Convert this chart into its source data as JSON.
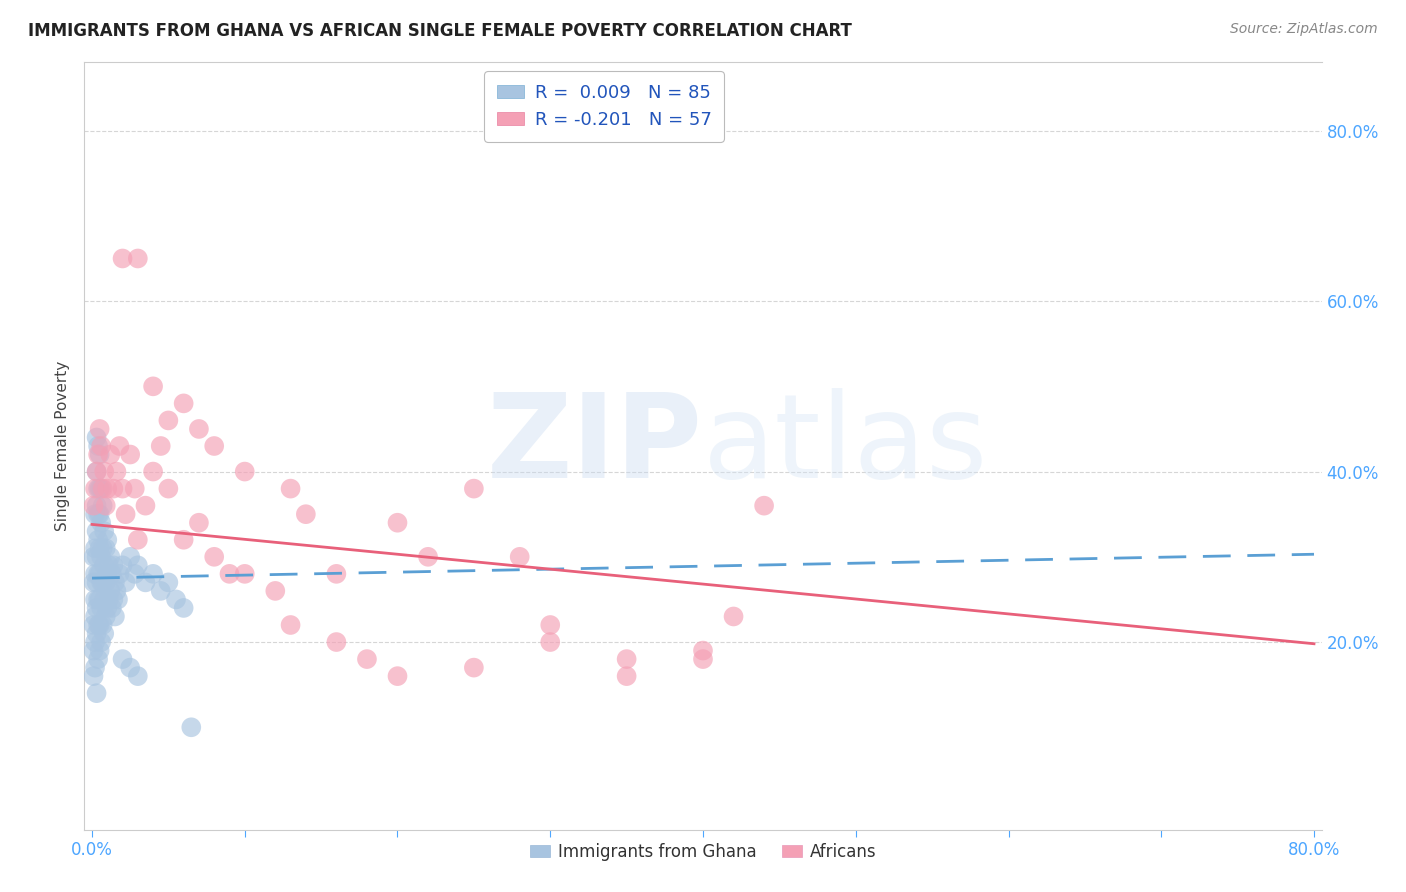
{
  "title": "IMMIGRANTS FROM GHANA VS AFRICAN SINGLE FEMALE POVERTY CORRELATION CHART",
  "source": "Source: ZipAtlas.com",
  "ylabel": "Single Female Poverty",
  "xlim": [
    -0.005,
    0.805
  ],
  "ylim": [
    -0.02,
    0.88
  ],
  "ghana_color": "#a8c4e0",
  "africans_color": "#f4a0b5",
  "ghana_trendline_color": "#5a9fd4",
  "africans_trendline_color": "#e8607a",
  "ghana_R": 0.009,
  "ghana_N": 85,
  "africans_R": -0.201,
  "africans_N": 57,
  "ghana_x": [
    0.001,
    0.001,
    0.001,
    0.001,
    0.001,
    0.002,
    0.002,
    0.002,
    0.002,
    0.002,
    0.002,
    0.002,
    0.003,
    0.003,
    0.003,
    0.003,
    0.003,
    0.003,
    0.003,
    0.003,
    0.003,
    0.004,
    0.004,
    0.004,
    0.004,
    0.004,
    0.004,
    0.004,
    0.004,
    0.005,
    0.005,
    0.005,
    0.005,
    0.005,
    0.005,
    0.005,
    0.005,
    0.006,
    0.006,
    0.006,
    0.006,
    0.006,
    0.006,
    0.007,
    0.007,
    0.007,
    0.007,
    0.008,
    0.008,
    0.008,
    0.008,
    0.009,
    0.009,
    0.009,
    0.01,
    0.01,
    0.01,
    0.011,
    0.011,
    0.012,
    0.012,
    0.013,
    0.013,
    0.014,
    0.014,
    0.015,
    0.015,
    0.016,
    0.017,
    0.018,
    0.02,
    0.022,
    0.025,
    0.028,
    0.03,
    0.035,
    0.04,
    0.045,
    0.05,
    0.055,
    0.06,
    0.065,
    0.02,
    0.025,
    0.03
  ],
  "ghana_y": [
    0.27,
    0.3,
    0.22,
    0.19,
    0.16,
    0.35,
    0.31,
    0.28,
    0.25,
    0.23,
    0.2,
    0.17,
    0.44,
    0.4,
    0.36,
    0.33,
    0.3,
    0.27,
    0.24,
    0.21,
    0.14,
    0.43,
    0.38,
    0.35,
    0.32,
    0.28,
    0.25,
    0.22,
    0.18,
    0.42,
    0.38,
    0.35,
    0.31,
    0.28,
    0.25,
    0.22,
    0.19,
    0.38,
    0.34,
    0.3,
    0.27,
    0.24,
    0.2,
    0.36,
    0.31,
    0.27,
    0.22,
    0.33,
    0.29,
    0.25,
    0.21,
    0.31,
    0.27,
    0.23,
    0.32,
    0.28,
    0.24,
    0.29,
    0.25,
    0.3,
    0.26,
    0.28,
    0.24,
    0.29,
    0.25,
    0.27,
    0.23,
    0.26,
    0.25,
    0.28,
    0.29,
    0.27,
    0.3,
    0.28,
    0.29,
    0.27,
    0.28,
    0.26,
    0.27,
    0.25,
    0.24,
    0.1,
    0.18,
    0.17,
    0.16
  ],
  "africans_x": [
    0.001,
    0.002,
    0.003,
    0.004,
    0.005,
    0.006,
    0.007,
    0.008,
    0.009,
    0.01,
    0.012,
    0.014,
    0.016,
    0.018,
    0.02,
    0.022,
    0.025,
    0.028,
    0.03,
    0.035,
    0.04,
    0.045,
    0.05,
    0.06,
    0.07,
    0.08,
    0.09,
    0.1,
    0.12,
    0.13,
    0.14,
    0.16,
    0.18,
    0.2,
    0.22,
    0.25,
    0.28,
    0.3,
    0.35,
    0.4,
    0.42,
    0.44,
    0.02,
    0.03,
    0.04,
    0.05,
    0.06,
    0.07,
    0.08,
    0.1,
    0.13,
    0.16,
    0.2,
    0.25,
    0.3,
    0.35,
    0.4
  ],
  "africans_y": [
    0.36,
    0.38,
    0.4,
    0.42,
    0.45,
    0.43,
    0.38,
    0.4,
    0.36,
    0.38,
    0.42,
    0.38,
    0.4,
    0.43,
    0.38,
    0.35,
    0.42,
    0.38,
    0.32,
    0.36,
    0.4,
    0.43,
    0.38,
    0.32,
    0.34,
    0.3,
    0.28,
    0.28,
    0.26,
    0.22,
    0.35,
    0.28,
    0.18,
    0.16,
    0.3,
    0.38,
    0.3,
    0.22,
    0.18,
    0.19,
    0.23,
    0.36,
    0.65,
    0.65,
    0.5,
    0.46,
    0.48,
    0.45,
    0.43,
    0.4,
    0.38,
    0.2,
    0.34,
    0.17,
    0.2,
    0.16,
    0.18
  ],
  "legend_label1": "Immigrants from Ghana",
  "legend_label2": "Africans",
  "grid_lines": [
    0.2,
    0.4,
    0.6,
    0.8
  ],
  "x_tick_positions": [
    0.0,
    0.1,
    0.2,
    0.3,
    0.4,
    0.5,
    0.6,
    0.7,
    0.8
  ],
  "y_tick_positions": [
    0.2,
    0.4,
    0.6,
    0.8
  ],
  "tick_color": "#4da6ff",
  "grid_color": "#cccccc",
  "spine_color": "#cccccc"
}
